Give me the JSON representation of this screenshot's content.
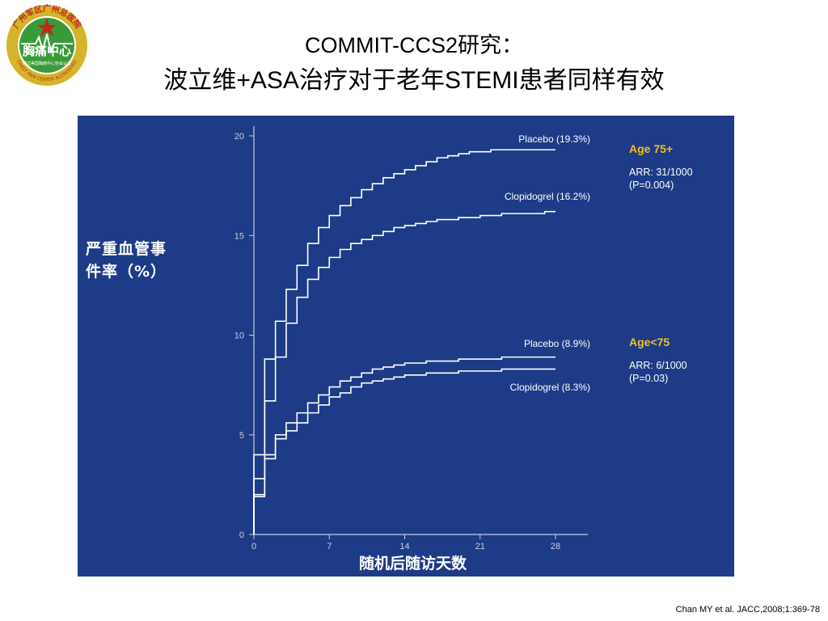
{
  "slide": {
    "title_line1": "COMMIT-CCS2研究：",
    "title_line2": "波立维+ASA治疗对于老年STEMI患者同样有效",
    "citation": "Chan MY et al. JACC,2008;1:369-78"
  },
  "logo": {
    "top_text": "广州军区广州总医院",
    "center_text": "胸痛中心",
    "sub_text": "通过美国胸痛中心协会认证",
    "bottom_text": "CHEST PAIN CENTER ACCREDITED",
    "ring_color": "#d4b42a",
    "center_color": "#3a9a3a",
    "text_color": "#c0281c"
  },
  "chart_data": {
    "type": "line",
    "ylabel_line1": "严重血管事",
    "ylabel_line2": "件率（%）",
    "xlabel": "随机后随访天数",
    "xlim": [
      0,
      28
    ],
    "ylim": [
      0,
      20
    ],
    "xticks": [
      0,
      7,
      14,
      21,
      28
    ],
    "yticks": [
      0,
      5,
      10,
      15,
      20
    ],
    "x": [
      0,
      1,
      2,
      3,
      4,
      5,
      6,
      7,
      8,
      9,
      10,
      11,
      12,
      13,
      14,
      15,
      16,
      17,
      18,
      19,
      20,
      21,
      22,
      23,
      24,
      25,
      26,
      27,
      28
    ],
    "series": [
      {
        "name": "Placebo (19.3%)",
        "values": [
          2.8,
          8.8,
          10.7,
          12.3,
          13.5,
          14.6,
          15.4,
          16.0,
          16.5,
          16.9,
          17.3,
          17.6,
          17.9,
          18.1,
          18.3,
          18.5,
          18.7,
          18.9,
          19.0,
          19.1,
          19.2,
          19.2,
          19.3,
          19.3,
          19.3,
          19.3,
          19.3,
          19.3,
          19.3
        ]
      },
      {
        "name": "Clopidogrel (16.2%)",
        "values": [
          1.9,
          6.7,
          8.9,
          10.6,
          11.9,
          12.8,
          13.4,
          13.9,
          14.3,
          14.6,
          14.8,
          15.0,
          15.2,
          15.4,
          15.5,
          15.6,
          15.7,
          15.8,
          15.8,
          15.9,
          15.9,
          16.0,
          16.0,
          16.1,
          16.1,
          16.1,
          16.1,
          16.2,
          16.2
        ]
      },
      {
        "name": "Placebo (8.9%)",
        "values": [
          4.0,
          4.0,
          5.0,
          5.6,
          6.1,
          6.6,
          7.0,
          7.4,
          7.7,
          7.9,
          8.1,
          8.3,
          8.4,
          8.5,
          8.6,
          8.6,
          8.7,
          8.7,
          8.7,
          8.8,
          8.8,
          8.8,
          8.8,
          8.9,
          8.9,
          8.9,
          8.9,
          8.9,
          8.9
        ]
      },
      {
        "name": "Clopidogrel (8.3%)",
        "values": [
          2.0,
          3.8,
          4.8,
          5.2,
          5.6,
          6.1,
          6.5,
          6.9,
          7.1,
          7.4,
          7.6,
          7.7,
          7.8,
          7.9,
          8.0,
          8.0,
          8.1,
          8.1,
          8.1,
          8.2,
          8.2,
          8.2,
          8.2,
          8.3,
          8.3,
          8.3,
          8.3,
          8.3,
          8.3
        ]
      }
    ],
    "groups": [
      {
        "title": "Age 75+",
        "arr": "ARR: 31/1000",
        "p": "(P=0.004)"
      },
      {
        "title": "Age<75",
        "arr": "ARR: 6/1000",
        "p": "(P=0.03)"
      }
    ],
    "colors": {
      "background": "#1d3b86",
      "line": "#ffffff",
      "axis": "#c8cfe0",
      "group_title": "#f0c020"
    }
  }
}
